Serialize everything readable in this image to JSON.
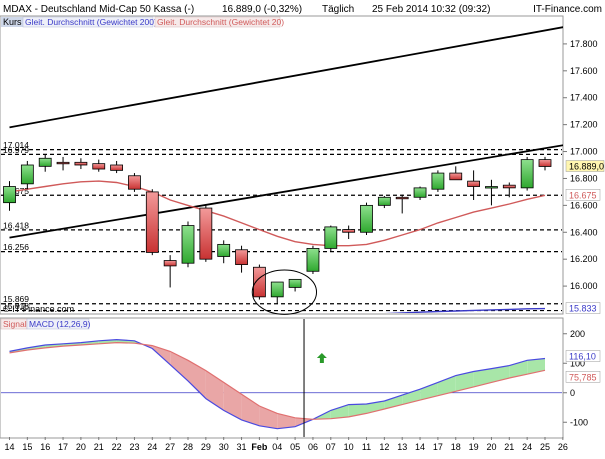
{
  "header": {
    "instrument": "MDAX - Deutschland Mid-Cap 50 Kassa (-)",
    "quote": "16.889,0 (-0,32%)",
    "interval": "Täglich",
    "timestamp": "25 Feb 2014 10:32 (09:32)",
    "brand": "IT-Finance.com"
  },
  "price_panel": {
    "label": "Kurs",
    "legend": [
      {
        "label": "Gleit. Durchschnitt (Gewichtet 200)",
        "color": "#3a3ac8"
      },
      {
        "label": "Gleit. Durchschnitt (Gewichtet 20)",
        "color": "#d05a5a"
      }
    ],
    "watermark": "© IT-Finance.com",
    "badges": {
      "last": "16.889,0",
      "ma20": "16.675",
      "ma200": "15.833"
    }
  },
  "macd_panel": {
    "label": "Signal",
    "indicator": "MACD (12,26,9)",
    "badges": {
      "macd": "116,10",
      "signal": "75,785"
    }
  },
  "chart_data": [
    {
      "type": "candlestick",
      "y_axis": {
        "range": [
          15800,
          18000
        ],
        "ticks": [
          "17.800",
          "17.600",
          "17.400",
          "17.200",
          "17.000",
          "16.800",
          "16.600",
          "16.400",
          "16.200",
          "16.000"
        ]
      },
      "x_axis": {
        "ticks": [
          "14",
          "15",
          "16",
          "17",
          "20",
          "21",
          "22",
          "23",
          "24",
          "27",
          "28",
          "29",
          "30",
          "31",
          "Feb",
          "04",
          "05",
          "06",
          "07",
          "10",
          "11",
          "12",
          "13",
          "14",
          "17",
          "18",
          "19",
          "20",
          "21",
          "24",
          "25",
          "26"
        ]
      },
      "candles": [
        {
          "o": 16620,
          "h": 16780,
          "l": 16560,
          "c": 16740
        },
        {
          "o": 16760,
          "h": 16930,
          "l": 16720,
          "c": 16900
        },
        {
          "o": 16890,
          "h": 16980,
          "l": 16850,
          "c": 16950
        },
        {
          "o": 16920,
          "h": 16960,
          "l": 16860,
          "c": 16910
        },
        {
          "o": 16920,
          "h": 16950,
          "l": 16870,
          "c": 16900
        },
        {
          "o": 16910,
          "h": 16940,
          "l": 16850,
          "c": 16870
        },
        {
          "o": 16900,
          "h": 16930,
          "l": 16840,
          "c": 16860
        },
        {
          "o": 16820,
          "h": 16840,
          "l": 16700,
          "c": 16720
        },
        {
          "o": 16700,
          "h": 16720,
          "l": 16230,
          "c": 16250
        },
        {
          "o": 16190,
          "h": 16230,
          "l": 15990,
          "c": 16150
        },
        {
          "o": 16170,
          "h": 16480,
          "l": 16140,
          "c": 16450
        },
        {
          "o": 16580,
          "h": 16600,
          "l": 16180,
          "c": 16200
        },
        {
          "o": 16220,
          "h": 16340,
          "l": 16170,
          "c": 16310
        },
        {
          "o": 16270,
          "h": 16300,
          "l": 16100,
          "c": 16160
        },
        {
          "o": 16140,
          "h": 16160,
          "l": 15900,
          "c": 15920
        },
        {
          "o": 15920,
          "h": 16030,
          "l": 15870,
          "c": 16030
        },
        {
          "o": 15990,
          "h": 16050,
          "l": 15960,
          "c": 16050
        },
        {
          "o": 16110,
          "h": 16300,
          "l": 16090,
          "c": 16280
        },
        {
          "o": 16280,
          "h": 16450,
          "l": 16260,
          "c": 16440
        },
        {
          "o": 16420,
          "h": 16450,
          "l": 16350,
          "c": 16400
        },
        {
          "o": 16400,
          "h": 16620,
          "l": 16380,
          "c": 16600
        },
        {
          "o": 16600,
          "h": 16670,
          "l": 16580,
          "c": 16660
        },
        {
          "o": 16660,
          "h": 16680,
          "l": 16540,
          "c": 16650
        },
        {
          "o": 16660,
          "h": 16740,
          "l": 16640,
          "c": 16730
        },
        {
          "o": 16720,
          "h": 16860,
          "l": 16700,
          "c": 16840
        },
        {
          "o": 16840,
          "h": 16890,
          "l": 16800,
          "c": 16790
        },
        {
          "o": 16780,
          "h": 16860,
          "l": 16640,
          "c": 16740
        },
        {
          "o": 16730,
          "h": 16790,
          "l": 16600,
          "c": 16740
        },
        {
          "o": 16750,
          "h": 16770,
          "l": 16660,
          "c": 16730
        },
        {
          "o": 16730,
          "h": 16960,
          "l": 16710,
          "c": 16940
        },
        {
          "o": 16940,
          "h": 16960,
          "l": 16860,
          "c": 16889
        }
      ],
      "horizontal_levels": [
        {
          "value": 17014,
          "label": "17.014"
        },
        {
          "value": 16979,
          "label": "16.979"
        },
        {
          "value": 16675,
          "label": "16.675"
        },
        {
          "value": 16418,
          "label": "16.418"
        },
        {
          "value": 16256,
          "label": "16.256"
        },
        {
          "value": 15869,
          "label": "15.869"
        },
        {
          "value": 15818,
          "label": "15.818"
        }
      ],
      "channel_lines": [
        {
          "from": [
            0,
            17180
          ],
          "to": [
            32.5,
            17960
          ]
        },
        {
          "from": [
            0,
            16360
          ],
          "to": [
            32.5,
            17080
          ]
        }
      ],
      "moving_averages": [
        {
          "name": "Gleit. Durchschnitt (Gewichtet 20)",
          "color": "#d05a5a",
          "values": [
            16700,
            16720,
            16740,
            16760,
            16775,
            16780,
            16770,
            16740,
            16700,
            16640,
            16600,
            16560,
            16520,
            16470,
            16420,
            16370,
            16330,
            16310,
            16300,
            16300,
            16310,
            16340,
            16380,
            16420,
            16470,
            16510,
            16550,
            16580,
            16610,
            16645,
            16675
          ]
        },
        {
          "name": "Gleit. Durchschnitt (Gewichtet 200)",
          "color": "#3a3ac8",
          "values": [
            null,
            null,
            null,
            null,
            null,
            null,
            null,
            null,
            null,
            null,
            null,
            null,
            null,
            null,
            null,
            15740,
            15750,
            15760,
            15770,
            15780,
            15788,
            15795,
            15801,
            15806,
            15811,
            15815,
            15819,
            15823,
            15827,
            15831,
            15833
          ]
        }
      ],
      "annotations": [
        {
          "type": "ellipse",
          "x_range": [
            13.6,
            17.2
          ],
          "y_range": [
            15790,
            16120
          ]
        }
      ]
    },
    {
      "type": "line",
      "title": "MACD (12,26,9)",
      "y_axis": {
        "range": [
          -150,
          250
        ],
        "ticks": [
          "200",
          "100",
          "0",
          "-100"
        ]
      },
      "series": [
        {
          "name": "MACD (12,26,9)",
          "color": "#4a4ae0",
          "values": [
            140,
            152,
            162,
            166,
            170,
            176,
            180,
            176,
            150,
            95,
            40,
            -20,
            -60,
            -92,
            -112,
            -122,
            -115,
            -90,
            -60,
            -40,
            -38,
            -28,
            -8,
            12,
            35,
            58,
            72,
            82,
            92,
            110,
            116
          ]
        },
        {
          "name": "Signal",
          "color": "#e07070",
          "values": [
            135,
            145,
            152,
            158,
            162,
            166,
            170,
            168,
            160,
            140,
            110,
            75,
            35,
            -5,
            -45,
            -70,
            -85,
            -90,
            -88,
            -82,
            -70,
            -55,
            -40,
            -25,
            -10,
            5,
            20,
            35,
            50,
            63,
            76
          ]
        }
      ],
      "marker": {
        "type": "arrow-up",
        "index": 17.5,
        "value": 118,
        "color": "#2a9a2a"
      },
      "vertical_line_index": 16.5
    }
  ]
}
